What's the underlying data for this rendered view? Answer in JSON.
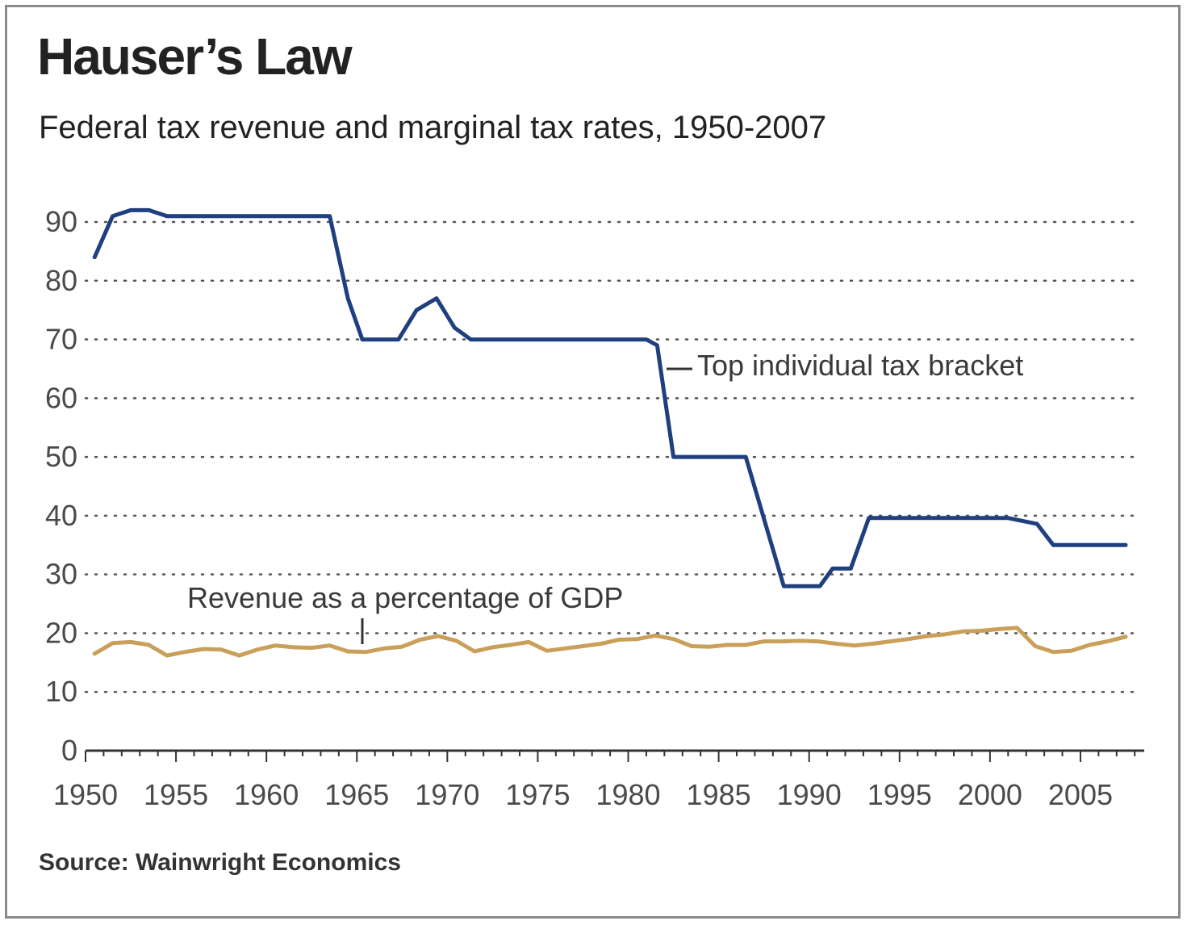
{
  "title": "Hauser’s Law",
  "subtitle": "Federal tax revenue and marginal tax rates, 1950-2007",
  "source": "Source: Wainwright Economics",
  "colors": {
    "top_bracket": "#1f3f7f",
    "revenue": "#c9a05a",
    "grid": "#555555",
    "axis": "#333333"
  },
  "chart_data": {
    "type": "line",
    "xlim": [
      1950,
      2008
    ],
    "ylim": [
      0,
      90
    ],
    "grid": "horizontal dotted",
    "x_ticks": [
      1950,
      1955,
      1960,
      1965,
      1970,
      1975,
      1980,
      1985,
      1990,
      1995,
      2000,
      2005
    ],
    "y_ticks": [
      0,
      10,
      20,
      30,
      40,
      50,
      60,
      70,
      80,
      90
    ],
    "series": [
      {
        "name": "Top individual tax bracket",
        "x": [
          1950.5,
          1951.5,
          1952.5,
          1953.5,
          1954.5,
          1963.5,
          1964.5,
          1965.3,
          1967.3,
          1968.3,
          1969.4,
          1970.4,
          1971.3,
          1981.0,
          1981.6,
          1982.5,
          1986.5,
          1988.6,
          1990.6,
          1991.3,
          1992.3,
          1993.3,
          2001.0,
          2002.6,
          2003.5,
          2007.5
        ],
        "values": [
          84,
          91,
          92,
          92,
          91,
          91,
          77,
          70,
          70,
          75,
          77,
          72,
          70,
          70,
          69,
          50,
          50,
          28,
          28,
          31,
          31,
          39.6,
          39.6,
          38.6,
          35,
          35
        ]
      },
      {
        "name": "Revenue as a percentage of GDP",
        "x": [
          1950.5,
          1951.5,
          1952.5,
          1953.5,
          1954.5,
          1955.5,
          1956.5,
          1957.5,
          1958.5,
          1959.5,
          1960.5,
          1961.5,
          1962.5,
          1963.5,
          1964.5,
          1965.5,
          1966.5,
          1967.5,
          1968.5,
          1969.5,
          1970.5,
          1971.5,
          1972.5,
          1973.5,
          1974.5,
          1975.5,
          1976.5,
          1977.5,
          1978.5,
          1979.5,
          1980.5,
          1981.5,
          1982.5,
          1983.5,
          1984.5,
          1985.5,
          1986.5,
          1987.5,
          1988.5,
          1989.5,
          1990.5,
          1991.5,
          1992.5,
          1993.5,
          1994.5,
          1995.5,
          1996.5,
          1997.5,
          1998.5,
          1999.5,
          2000.5,
          2001.5,
          2002.5,
          2003.5,
          2004.5,
          2005.5,
          2006.5,
          2007.5
        ],
        "values": [
          16.5,
          18.3,
          18.5,
          18.0,
          16.2,
          16.8,
          17.3,
          17.2,
          16.2,
          17.2,
          17.9,
          17.6,
          17.5,
          17.9,
          16.9,
          16.8,
          17.4,
          17.7,
          18.9,
          19.5,
          18.7,
          16.9,
          17.6,
          18.0,
          18.5,
          17.0,
          17.4,
          17.8,
          18.2,
          18.9,
          19.0,
          19.6,
          19.0,
          17.8,
          17.7,
          18.0,
          18.0,
          18.6,
          18.6,
          18.7,
          18.6,
          18.2,
          17.9,
          18.2,
          18.6,
          19.0,
          19.5,
          19.8,
          20.3,
          20.4,
          20.7,
          20.9,
          17.8,
          16.8,
          17.0,
          18.0,
          18.6,
          19.4
        ]
      }
    ],
    "annotations": [
      "Top individual tax bracket",
      "Revenue as a percentage of GDP"
    ]
  }
}
